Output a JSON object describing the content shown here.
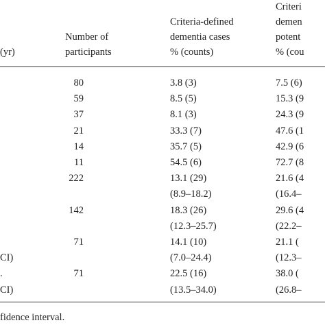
{
  "header": {
    "columns": [
      [
        "(yr)"
      ],
      [
        "Number of",
        "participants"
      ],
      [
        "Criteria-defined",
        "dementia cases",
        "% (counts)"
      ],
      [
        "Criteri",
        "demen",
        "potent",
        "% (cou"
      ]
    ]
  },
  "table": {
    "rows": [
      [
        null,
        "80",
        "3.8 (3)",
        "7.5 (6)"
      ],
      [
        null,
        "59",
        "8.5 (5)",
        "15.3 (9"
      ],
      [
        null,
        "37",
        "8.1 (3)",
        "24.3 (9"
      ],
      [
        null,
        "21",
        "33.3 (7)",
        "47.6 (1"
      ],
      [
        null,
        "14",
        "35.7 (5)",
        "42.9 (6"
      ],
      [
        null,
        "11",
        "54.5 (6)",
        "72.7 (8"
      ],
      [
        null,
        "222",
        "13.1 (29)",
        "21.6 (4"
      ],
      [
        null,
        null,
        "(8.9–18.2)",
        "(16.4–"
      ],
      [
        null,
        "142",
        "18.3 (26)",
        "29.6 (4"
      ],
      [
        null,
        null,
        "(12.3–25.7)",
        "(22.2–"
      ],
      [
        null,
        "71",
        "14.1 (10)",
        "21.1 ("
      ],
      [
        "CI)",
        null,
        "(7.0–24.4)",
        "(12.3–"
      ],
      [
        ".",
        "71",
        "22.5 (16)",
        "38.0 ("
      ],
      [
        "CI)",
        null,
        "(13.5–34.0)",
        "(26.8–"
      ]
    ]
  },
  "footer": "fidence interval."
}
